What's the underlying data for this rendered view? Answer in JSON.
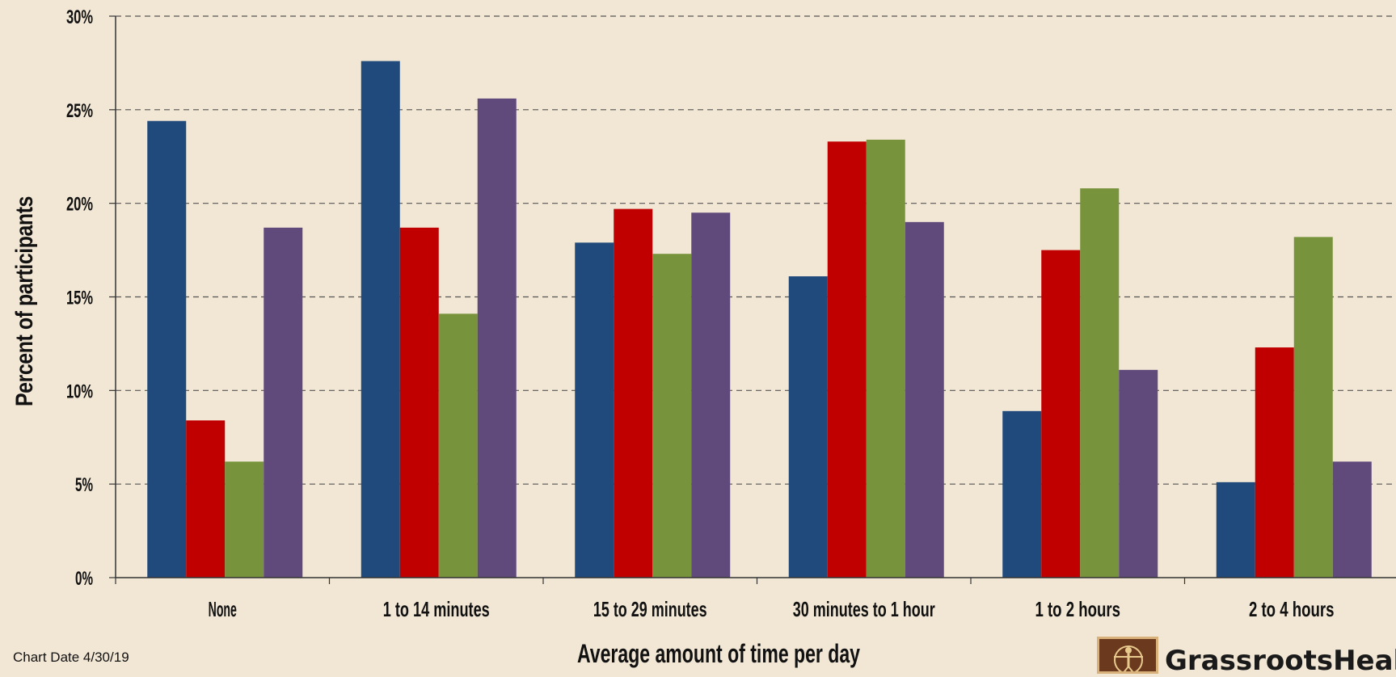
{
  "chart_data": {
    "type": "bar",
    "ylabel": "Percent of participants",
    "xlabel": "Average amount of time per day",
    "ylim": [
      0,
      30
    ],
    "yticks": [
      "0%",
      "5%",
      "10%",
      "15%",
      "20%",
      "25%",
      "30%"
    ],
    "grid": true,
    "categories": [
      "None",
      "1 to 14 minutes",
      "15 to 29 minutes",
      "30 minutes to 1 hour",
      "1 to 2 hours",
      "2 to 4 hours"
    ],
    "series": [
      {
        "color": "#204a7b",
        "values": [
          24.4,
          27.6,
          17.9,
          16.1,
          8.9,
          5.1
        ]
      },
      {
        "color": "#c00000",
        "values": [
          8.4,
          18.7,
          19.7,
          23.3,
          17.5,
          12.3
        ]
      },
      {
        "color": "#77933c",
        "values": [
          6.2,
          14.1,
          17.3,
          23.4,
          20.8,
          18.2
        ]
      },
      {
        "color": "#604a7b",
        "values": [
          18.7,
          25.6,
          19.5,
          19.0,
          11.1,
          6.2
        ]
      }
    ]
  },
  "footer": {
    "chart_date": "Chart Date 4/30/19",
    "logo_text": "GrassrootsHealth",
    "logo_icon": "vitruvian-man-icon"
  }
}
